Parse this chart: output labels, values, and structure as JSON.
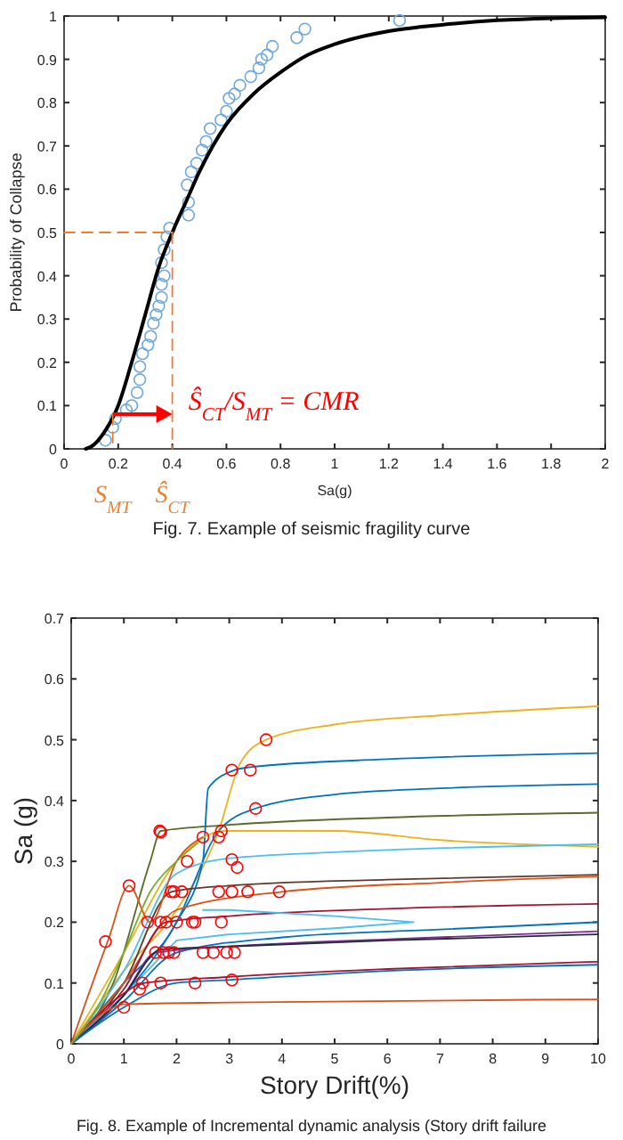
{
  "chart_data": [
    {
      "type": "line",
      "title": "Fig. 7. Example of seismic fragility curve",
      "xlabel": "Sa(g)",
      "ylabel": "Probability of Collapse",
      "xlim": [
        0,
        2
      ],
      "ylim": [
        0,
        1
      ],
      "xticks": [
        0,
        0.2,
        0.4,
        0.6,
        0.8,
        1,
        1.2,
        1.4,
        1.6,
        1.8,
        2
      ],
      "yticks": [
        0,
        0.1,
        0.2,
        0.3,
        0.4,
        0.5,
        0.6,
        0.7,
        0.8,
        0.9,
        1
      ],
      "series": [
        {
          "type": "scatter",
          "marker": "circle",
          "color": "#6fa8dc",
          "x": [
            0.153,
            0.18,
            0.19,
            0.23,
            0.25,
            0.27,
            0.28,
            0.28,
            0.29,
            0.31,
            0.32,
            0.33,
            0.34,
            0.35,
            0.36,
            0.36,
            0.37,
            0.36,
            0.37,
            0.38,
            0.39,
            0.46,
            0.46,
            0.455,
            0.47,
            0.49,
            0.51,
            0.525,
            0.54,
            0.58,
            0.6,
            0.61,
            0.63,
            0.65,
            0.69,
            0.72,
            0.73,
            0.75,
            0.77,
            0.86,
            0.89,
            1.24
          ],
          "values": [
            0.02,
            0.05,
            0.07,
            0.09,
            0.1,
            0.13,
            0.16,
            0.19,
            0.22,
            0.24,
            0.26,
            0.29,
            0.31,
            0.33,
            0.35,
            0.38,
            0.4,
            0.43,
            0.46,
            0.49,
            0.51,
            0.54,
            0.57,
            0.61,
            0.64,
            0.66,
            0.69,
            0.71,
            0.74,
            0.76,
            0.78,
            0.81,
            0.82,
            0.84,
            0.86,
            0.88,
            0.9,
            0.91,
            0.93,
            0.95,
            0.97,
            0.99
          ]
        },
        {
          "color": "#000000",
          "x": [
            0.08,
            0.1,
            0.15,
            0.2,
            0.25,
            0.3,
            0.35,
            0.4,
            0.45,
            0.5,
            0.6,
            0.7,
            0.8,
            0.9,
            1.0,
            1.2,
            1.4,
            1.6,
            1.8,
            2.0
          ],
          "values": [
            0,
            0.005,
            0.04,
            0.1,
            0.2,
            0.31,
            0.42,
            0.5,
            0.57,
            0.64,
            0.75,
            0.82,
            0.87,
            0.91,
            0.935,
            0.965,
            0.98,
            0.99,
            0.995,
            0.997
          ]
        },
        {
          "line_style": "dashed",
          "color": "#ed7d31",
          "x": [
            0,
            0.4
          ],
          "values": [
            0.5,
            0.5
          ]
        },
        {
          "line_style": "dashed",
          "color": "#ed7d31",
          "x": [
            0.4,
            0.4
          ],
          "values": [
            0.5,
            0
          ]
        },
        {
          "line_style": "dashed",
          "color": "#ed7d31",
          "x": [
            0.18,
            0.18
          ],
          "values": [
            0.08,
            0
          ]
        }
      ],
      "annotations": [
        "S$_{MT}$",
        "Ŝ$_{CT}$",
        "Ŝ$_{CT}$/S$_{MT}$ = CMR"
      ]
    },
    {
      "type": "line",
      "title": "Fig. 8. Example of Incremental dynamic analysis (Story drift failure",
      "xlabel": "Story Drift(%)",
      "ylabel": "Sa (g)",
      "xlim": [
        0,
        10
      ],
      "ylim": [
        0,
        0.7
      ],
      "xticks": [
        0,
        1,
        2,
        3,
        4,
        5,
        6,
        7,
        8,
        9,
        10
      ],
      "yticks": [
        0,
        0.1,
        0.2,
        0.3,
        0.4,
        0.5,
        0.6,
        0.7
      ],
      "series": [
        {
          "color": "#edb120",
          "x": [
            0,
            1,
            2,
            2.8,
            3.2,
            3.7,
            5,
            7,
            10
          ],
          "values": [
            0,
            0.12,
            0.22,
            0.35,
            0.46,
            0.5,
            0.525,
            0.54,
            0.555
          ]
        },
        {
          "color": "#0072bd",
          "x": [
            0,
            1,
            2,
            2.5,
            2.6,
            3.1,
            3.4,
            6,
            10
          ],
          "values": [
            0,
            0.1,
            0.2,
            0.3,
            0.42,
            0.45,
            0.455,
            0.468,
            0.478
          ]
        },
        {
          "color": "#0072bd",
          "x": [
            0,
            1,
            2,
            2.8,
            3.5,
            5,
            7,
            10
          ],
          "values": [
            0,
            0.08,
            0.2,
            0.35,
            0.387,
            0.41,
            0.42,
            0.427
          ]
        },
        {
          "color": "#5a6b2a",
          "x": [
            0,
            0.8,
            1.5,
            1.7,
            3,
            6,
            10
          ],
          "values": [
            0,
            0.1,
            0.3,
            0.35,
            0.36,
            0.372,
            0.38
          ]
        },
        {
          "color": "#edb120",
          "x": [
            0,
            1,
            2,
            2.9,
            5,
            7,
            10
          ],
          "values": [
            0,
            0.15,
            0.3,
            0.35,
            0.35,
            0.335,
            0.324
          ]
        },
        {
          "color": "#4dbeee",
          "x": [
            0,
            1,
            2,
            3,
            5,
            10
          ],
          "values": [
            0,
            0.12,
            0.28,
            0.305,
            0.315,
            0.328
          ]
        },
        {
          "color": "#5c3a2e",
          "x": [
            0,
            1,
            1.9,
            3,
            6,
            10
          ],
          "values": [
            0,
            0.1,
            0.25,
            0.26,
            0.27,
            0.278
          ]
        },
        {
          "color": "#d95319",
          "x": [
            0,
            1,
            2,
            4,
            7,
            10
          ],
          "values": [
            0,
            0.1,
            0.22,
            0.25,
            0.265,
            0.275
          ]
        },
        {
          "color": "#a2142f",
          "x": [
            0,
            1,
            1.8,
            3,
            6,
            10
          ],
          "values": [
            0,
            0.09,
            0.2,
            0.21,
            0.222,
            0.23
          ]
        },
        {
          "color": "#4dbeee",
          "x": [
            0,
            1,
            2,
            3,
            5,
            6.5,
            5,
            3,
            2.5
          ],
          "values": [
            0,
            0.08,
            0.17,
            0.18,
            0.19,
            0.2,
            0.21,
            0.22,
            0.22
          ]
        },
        {
          "color": "#0072bd",
          "x": [
            0,
            1,
            2,
            4,
            7,
            10
          ],
          "values": [
            0,
            0.07,
            0.15,
            0.175,
            0.188,
            0.2
          ]
        },
        {
          "color": "#7e2f8e",
          "x": [
            0,
            1,
            1.6,
            3,
            6,
            10
          ],
          "values": [
            0,
            0.08,
            0.15,
            0.16,
            0.172,
            0.185
          ]
        },
        {
          "color": "#1f2a44",
          "x": [
            0,
            1,
            1.7,
            3,
            6,
            10
          ],
          "values": [
            0,
            0.08,
            0.155,
            0.16,
            0.17,
            0.18
          ]
        },
        {
          "color": "#a2142f",
          "x": [
            0,
            0.8,
            1.4,
            3,
            6,
            10
          ],
          "values": [
            0,
            0.07,
            0.1,
            0.11,
            0.123,
            0.135
          ]
        },
        {
          "color": "#0072bd",
          "x": [
            0,
            1,
            2,
            3,
            6,
            10
          ],
          "values": [
            0,
            0.06,
            0.1,
            0.105,
            0.12,
            0.13
          ]
        },
        {
          "color": "#d95319",
          "x": [
            0,
            0.6,
            1,
            3,
            10
          ],
          "values": [
            0,
            0.05,
            0.065,
            0.068,
            0.073
          ]
        },
        {
          "color": "#d95319",
          "x": [
            0,
            0.7,
            1.1,
            1.5,
            2,
            2.5
          ],
          "values": [
            0,
            0.17,
            0.26,
            0.2,
            0.3,
            0.34
          ]
        },
        {
          "color": "#77ac30",
          "x": [
            0,
            0.5,
            1,
            1.5,
            2,
            2.4
          ],
          "values": [
            0,
            0.06,
            0.15,
            0.25,
            0.3,
            0.33
          ]
        },
        {
          "type": "scatter",
          "marker": "circle",
          "color": "#ff0000",
          "x": [
            0.65,
            1.1,
            1.68,
            1.7,
            1.45,
            1.0,
            1.35,
            1.7,
            1.6,
            1.75,
            1.85,
            1.95,
            1.8,
            1.7,
            2.0,
            2.3,
            2.35,
            1.9,
            1.95,
            2.2,
            2.1,
            2.35,
            2.5,
            2.8,
            2.85,
            3.05,
            3.4,
            3.7,
            3.5,
            3.05,
            3.15,
            2.8,
            3.05,
            3.35,
            3.95,
            2.85,
            2.7,
            2.95,
            3.1,
            3.05,
            2.5,
            1.3
          ],
          "values": [
            0.168,
            0.26,
            0.35,
            0.348,
            0.2,
            0.06,
            0.1,
            0.1,
            0.15,
            0.15,
            0.15,
            0.15,
            0.2,
            0.2,
            0.2,
            0.2,
            0.2,
            0.25,
            0.25,
            0.3,
            0.25,
            0.1,
            0.34,
            0.34,
            0.35,
            0.45,
            0.45,
            0.5,
            0.387,
            0.303,
            0.29,
            0.25,
            0.25,
            0.25,
            0.25,
            0.2,
            0.15,
            0.15,
            0.15,
            0.105,
            0.15,
            0.09
          ]
        }
      ]
    }
  ]
}
